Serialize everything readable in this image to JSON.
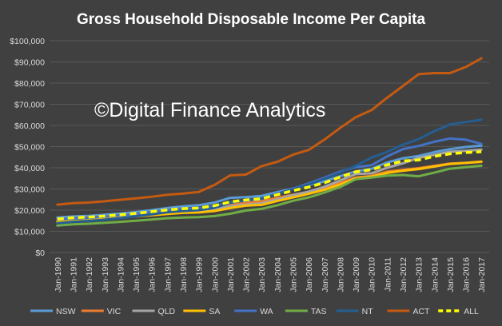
{
  "chart_data": {
    "type": "line",
    "title": "Gross Household Disposable Income Per Capita",
    "watermark": "©Digital Finance Analytics",
    "xlabel": "",
    "ylabel": "",
    "ylim": [
      0,
      100000
    ],
    "yticks": [
      "$0",
      "$10,000",
      "$20,000",
      "$30,000",
      "$40,000",
      "$50,000",
      "$60,000",
      "$70,000",
      "$80,000",
      "$90,000",
      "$100,000"
    ],
    "grid": true,
    "legend_position": "bottom",
    "categories": [
      "Jan-1990",
      "Jan-1991",
      "Jan-1992",
      "Jan-1993",
      "Jan-1994",
      "Jan-1995",
      "Jan-1996",
      "Jan-1997",
      "Jan-1998",
      "Jan-1999",
      "Jan-2000",
      "Jan-2001",
      "Jan-2002",
      "Jan-2003",
      "Jan-2004",
      "Jan-2005",
      "Jan-2006",
      "Jan-2007",
      "Jan-2008",
      "Jan-2009",
      "Jan-2010",
      "Jan-2011",
      "Jan-2012",
      "Jan-2013",
      "Jan-2014",
      "Jan-2015",
      "Jan-2016",
      "Jan-2017"
    ],
    "series": [
      {
        "name": "NSW",
        "color": "#5b9bd5",
        "dashed": false,
        "width": 3,
        "values": [
          16500,
          17000,
          17300,
          17800,
          18400,
          19100,
          20000,
          21000,
          21800,
          22300,
          23600,
          25800,
          26100,
          26700,
          28500,
          30200,
          31800,
          33600,
          36000,
          38300,
          39500,
          42500,
          44500,
          45600,
          47400,
          48800,
          49800,
          50500
        ]
      },
      {
        "name": "VIC",
        "color": "#ed7d31",
        "dashed": false,
        "width": 3,
        "values": [
          15400,
          16000,
          16400,
          16900,
          17400,
          18100,
          18900,
          19600,
          20100,
          20400,
          21300,
          22800,
          23600,
          24200,
          25800,
          27300,
          28600,
          30400,
          32800,
          35400,
          36200,
          38200,
          39000,
          39800,
          40900,
          42000,
          42300,
          42800
        ]
      },
      {
        "name": "QLD",
        "color": "#a5a5a5",
        "dashed": false,
        "width": 3,
        "values": [
          14300,
          14900,
          15300,
          15900,
          16500,
          17100,
          17900,
          18500,
          19100,
          19400,
          20300,
          21900,
          22600,
          23200,
          25100,
          27100,
          28700,
          31000,
          34000,
          37000,
          37400,
          40000,
          42100,
          44700,
          46100,
          47600,
          48000,
          48600
        ]
      },
      {
        "name": "SA",
        "color": "#ffc000",
        "dashed": false,
        "width": 3,
        "values": [
          14400,
          15000,
          15400,
          15900,
          16400,
          17000,
          17600,
          18200,
          18700,
          18900,
          19600,
          21000,
          22100,
          22500,
          24300,
          26000,
          27700,
          29600,
          32100,
          35000,
          35800,
          37600,
          38600,
          39400,
          40600,
          41800,
          42300,
          42900
        ]
      },
      {
        "name": "WA",
        "color": "#4472c4",
        "dashed": false,
        "width": 3,
        "values": [
          15500,
          16000,
          16300,
          16900,
          17500,
          18200,
          19200,
          20000,
          20600,
          20900,
          22000,
          23700,
          24500,
          25300,
          27800,
          30100,
          32600,
          35300,
          38200,
          40300,
          41200,
          45400,
          48800,
          50300,
          52300,
          53800,
          53300,
          51300
        ]
      },
      {
        "name": "TAS",
        "color": "#70ad47",
        "dashed": false,
        "width": 3,
        "values": [
          12700,
          13300,
          13600,
          14000,
          14500,
          15000,
          15600,
          16200,
          16500,
          16700,
          17200,
          18300,
          19800,
          20600,
          22300,
          24400,
          26000,
          28300,
          30900,
          34600,
          35400,
          36300,
          36600,
          36000,
          37700,
          39600,
          40300,
          41000
        ]
      },
      {
        "name": "NT",
        "color": "#255e91",
        "dashed": false,
        "width": 3,
        "values": [
          13800,
          14500,
          14900,
          15500,
          16200,
          17100,
          18000,
          19000,
          19600,
          20000,
          21100,
          23400,
          24800,
          25500,
          27600,
          29900,
          32100,
          34700,
          37700,
          41000,
          44800,
          47500,
          50900,
          53500,
          57300,
          60500,
          61600,
          62700
        ]
      },
      {
        "name": "ACT",
        "color": "#c55a11",
        "dashed": false,
        "width": 3,
        "values": [
          22600,
          23300,
          23600,
          24200,
          24900,
          25600,
          26300,
          27300,
          27800,
          28600,
          31900,
          36400,
          36800,
          40800,
          42800,
          46200,
          48400,
          53300,
          58800,
          63900,
          67200,
          73100,
          78600,
          84200,
          84700,
          84700,
          87600,
          91700
        ]
      },
      {
        "name": "ALL",
        "color": "#ffff00",
        "dashed": true,
        "width": 3.5,
        "values": [
          15800,
          16400,
          16700,
          17200,
          17800,
          18500,
          19300,
          20100,
          20700,
          21000,
          22100,
          23900,
          24800,
          25400,
          27300,
          29200,
          30900,
          32900,
          35600,
          38100,
          39100,
          41400,
          43200,
          43700,
          45400,
          46600,
          47200,
          47600
        ]
      }
    ]
  }
}
